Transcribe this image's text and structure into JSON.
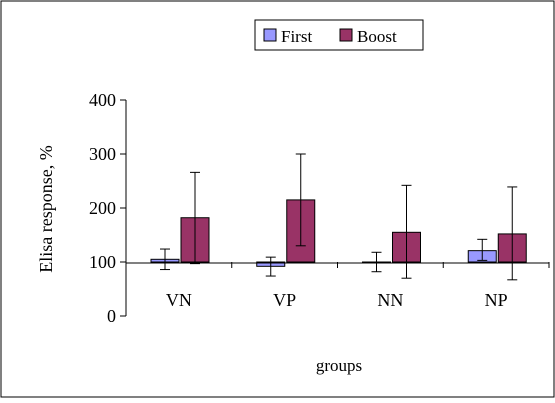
{
  "chart_data": {
    "type": "bar",
    "title": "",
    "xlabel": "groups",
    "ylabel": "Elisa response, %",
    "categories": [
      "VN",
      "VP",
      "NN",
      "NP"
    ],
    "ylim": [
      0,
      400
    ],
    "yticks": [
      "0",
      "100",
      "200",
      "300",
      "400"
    ],
    "baseline": 100,
    "grid": false,
    "legend_position": "top-center",
    "series": [
      {
        "name": "First",
        "color": "#9999ff",
        "values": [
          105,
          92,
          100,
          121
        ],
        "error_low": [
          86,
          74,
          82,
          103
        ],
        "error_high": [
          124,
          109,
          118,
          142
        ]
      },
      {
        "name": "Boost",
        "color": "#993366",
        "values": [
          182,
          215,
          155,
          152
        ],
        "error_low": [
          97,
          130,
          70,
          67
        ],
        "error_high": [
          266,
          300,
          242,
          239
        ]
      }
    ]
  }
}
